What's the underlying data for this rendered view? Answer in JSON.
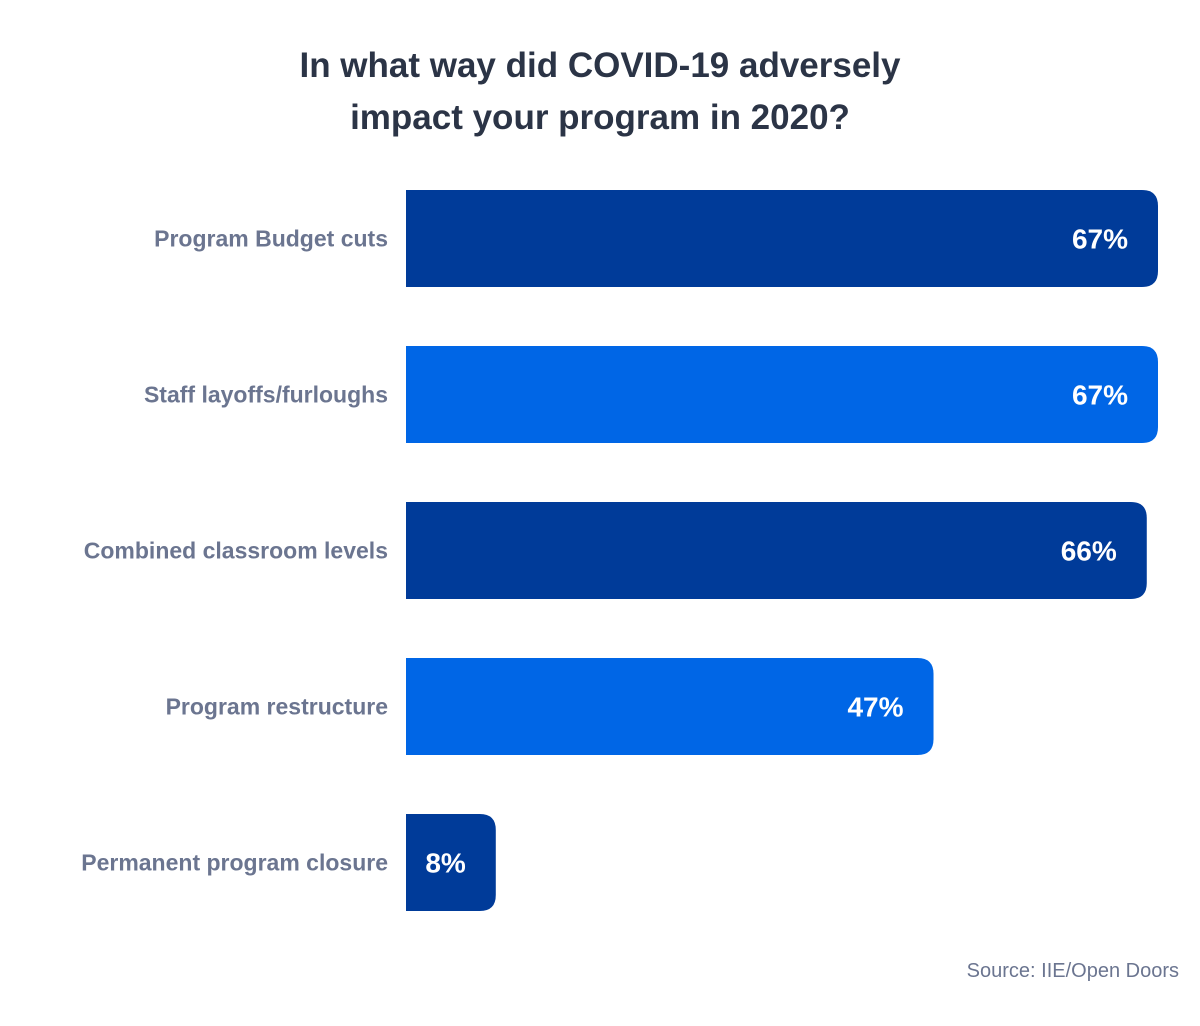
{
  "chart_data": {
    "type": "bar",
    "orientation": "horizontal",
    "title": "In what way did COVID-19 adversely impact your program in 2020?",
    "title_lines": [
      "In what way did COVID-19 adversely",
      "impact your program in 2020?"
    ],
    "categories": [
      "Program Budget cuts",
      "Staff layoffs/furloughs",
      "Combined classroom levels",
      "Program restructure",
      "Permanent program closure"
    ],
    "values": [
      67,
      67,
      66,
      47,
      8
    ],
    "data_labels": [
      "67%",
      "67%",
      "66%",
      "47%",
      "8%"
    ],
    "value_unit": "%",
    "xlim": [
      0,
      67
    ],
    "grid": false,
    "legend": "none",
    "colors": [
      "#003b99",
      "#0066e6",
      "#003b99",
      "#0066e6",
      "#003b99"
    ],
    "label_color": "#6b7590",
    "value_label_color": "#ffffff"
  },
  "source": "Source: IIE/Open Doors"
}
